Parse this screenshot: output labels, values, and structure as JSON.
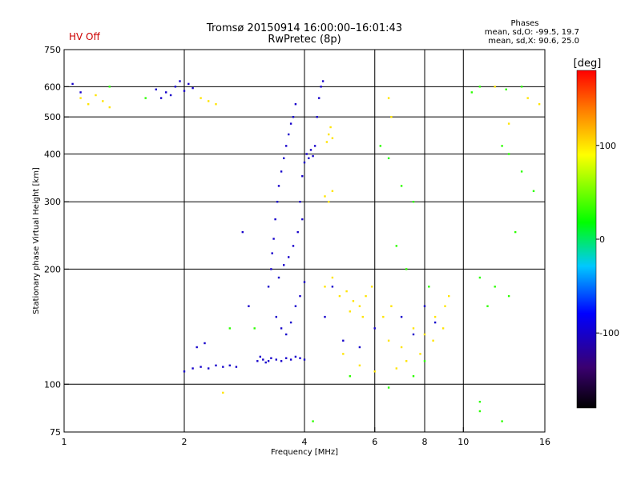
{
  "chart_data": {
    "type": "scatter",
    "title": "Tromsø 20150914 16:00:00–16:01:43",
    "subtitle": "RwPretec (8p)",
    "status_label": "HV Off",
    "xlabel": "Frequency [MHz]",
    "ylabel": "Stationary phase Virtual Height [km]",
    "x_scale": "log",
    "y_scale": "log",
    "xlim": [
      1,
      16
    ],
    "ylim": [
      75,
      750
    ],
    "x_ticks": [
      1,
      2,
      4,
      6,
      8,
      10,
      16
    ],
    "x_tick_labels": [
      "1",
      "2",
      "4",
      "6",
      "8",
      "10",
      "16"
    ],
    "y_ticks": [
      75,
      100,
      200,
      300,
      400,
      500,
      600,
      750
    ],
    "y_tick_labels": [
      "75",
      "100",
      "200",
      "300",
      "400",
      "500",
      "600",
      "750"
    ],
    "grid": true,
    "legend": {
      "title": "Phases",
      "lines": [
        "mean, sd,O:  -99.5, 19.7",
        "mean, sd,X:  90.6, 25.0"
      ]
    },
    "colorbar": {
      "label": "[deg]",
      "range": [
        -180,
        180
      ],
      "ticks": [
        100,
        0,
        -100
      ],
      "tick_labels": [
        "100",
        "0",
        "-100"
      ]
    },
    "series": [
      {
        "mode": "O",
        "points": [
          [
            3.05,
            115
          ],
          [
            3.1,
            118
          ],
          [
            3.15,
            116
          ],
          [
            3.2,
            114
          ],
          [
            3.25,
            115
          ],
          [
            3.3,
            117
          ],
          [
            3.4,
            116
          ],
          [
            3.5,
            115
          ],
          [
            3.6,
            117
          ],
          [
            3.7,
            116
          ],
          [
            3.8,
            118
          ],
          [
            3.9,
            117
          ],
          [
            4.0,
            116
          ],
          [
            3.25,
            180
          ],
          [
            3.3,
            200
          ],
          [
            3.32,
            220
          ],
          [
            3.35,
            240
          ],
          [
            3.38,
            270
          ],
          [
            3.42,
            300
          ],
          [
            3.45,
            330
          ],
          [
            3.5,
            360
          ],
          [
            3.55,
            390
          ],
          [
            3.6,
            420
          ],
          [
            3.65,
            450
          ],
          [
            3.7,
            480
          ],
          [
            3.75,
            500
          ],
          [
            3.8,
            540
          ],
          [
            3.4,
            150
          ],
          [
            3.5,
            140
          ],
          [
            3.6,
            135
          ],
          [
            3.7,
            145
          ],
          [
            3.8,
            160
          ],
          [
            3.9,
            170
          ],
          [
            4.0,
            185
          ],
          [
            3.45,
            190
          ],
          [
            3.55,
            205
          ],
          [
            3.65,
            215
          ],
          [
            3.75,
            230
          ],
          [
            3.85,
            250
          ],
          [
            3.95,
            270
          ],
          [
            3.9,
            300
          ],
          [
            3.95,
            350
          ],
          [
            4.0,
            380
          ],
          [
            4.05,
            400
          ],
          [
            4.1,
            390
          ],
          [
            4.15,
            410
          ],
          [
            4.2,
            395
          ],
          [
            4.25,
            420
          ],
          [
            4.3,
            500
          ],
          [
            4.35,
            560
          ],
          [
            4.4,
            600
          ],
          [
            4.45,
            620
          ],
          [
            2.0,
            108
          ],
          [
            2.1,
            110
          ],
          [
            2.2,
            111
          ],
          [
            2.3,
            110
          ],
          [
            2.4,
            112
          ],
          [
            2.5,
            111
          ],
          [
            2.6,
            112
          ],
          [
            2.7,
            111
          ],
          [
            2.15,
            125
          ],
          [
            2.25,
            128
          ],
          [
            1.7,
            590
          ],
          [
            1.8,
            580
          ],
          [
            1.9,
            600
          ],
          [
            2.0,
            585
          ],
          [
            2.1,
            595
          ],
          [
            1.75,
            560
          ],
          [
            1.85,
            570
          ],
          [
            1.95,
            620
          ],
          [
            2.05,
            610
          ],
          [
            1.05,
            610
          ],
          [
            1.1,
            580
          ],
          [
            2.8,
            250
          ],
          [
            2.9,
            160
          ],
          [
            4.5,
            150
          ],
          [
            4.7,
            180
          ],
          [
            5.0,
            130
          ],
          [
            5.5,
            125
          ],
          [
            6.0,
            140
          ],
          [
            7.0,
            150
          ],
          [
            7.5,
            135
          ],
          [
            8.0,
            160
          ],
          [
            8.5,
            145
          ]
        ],
        "phase_deg": -100
      },
      {
        "mode": "X",
        "points": [
          [
            4.6,
            450
          ],
          [
            4.65,
            470
          ],
          [
            4.7,
            440
          ],
          [
            4.55,
            430
          ],
          [
            4.5,
            310
          ],
          [
            4.6,
            300
          ],
          [
            4.7,
            320
          ],
          [
            4.5,
            180
          ],
          [
            4.7,
            190
          ],
          [
            4.9,
            170
          ],
          [
            5.1,
            175
          ],
          [
            5.3,
            165
          ],
          [
            5.5,
            160
          ],
          [
            5.7,
            170
          ],
          [
            5.9,
            180
          ],
          [
            5.2,
            155
          ],
          [
            5.6,
            150
          ],
          [
            6.5,
            130
          ],
          [
            7.0,
            125
          ],
          [
            7.5,
            140
          ],
          [
            8.0,
            135
          ],
          [
            8.5,
            150
          ],
          [
            9.0,
            160
          ],
          [
            6.8,
            110
          ],
          [
            7.2,
            115
          ],
          [
            7.8,
            120
          ],
          [
            8.4,
            130
          ],
          [
            8.9,
            140
          ],
          [
            9.2,
            170
          ],
          [
            1.1,
            560
          ],
          [
            1.15,
            540
          ],
          [
            1.2,
            570
          ],
          [
            1.25,
            550
          ],
          [
            1.3,
            530
          ],
          [
            2.2,
            560
          ],
          [
            2.3,
            550
          ],
          [
            2.4,
            540
          ],
          [
            5.0,
            120
          ],
          [
            5.5,
            112
          ],
          [
            6.0,
            108
          ],
          [
            6.3,
            150
          ],
          [
            6.6,
            160
          ],
          [
            6.5,
            560
          ],
          [
            6.6,
            500
          ],
          [
            12.0,
            600
          ],
          [
            14.5,
            560
          ],
          [
            15.5,
            540
          ],
          [
            13.0,
            480
          ],
          [
            2.5,
            95
          ]
        ],
        "phase_deg": 100
      },
      {
        "mode": "noise",
        "points": [
          [
            12.5,
            420
          ],
          [
            13.0,
            400
          ],
          [
            14.0,
            360
          ],
          [
            15.0,
            320
          ],
          [
            13.5,
            250
          ],
          [
            11.0,
            190
          ],
          [
            11.5,
            160
          ],
          [
            12.0,
            180
          ],
          [
            13.0,
            170
          ],
          [
            6.2,
            420
          ],
          [
            6.5,
            390
          ],
          [
            7.0,
            330
          ],
          [
            7.5,
            300
          ],
          [
            7.2,
            200
          ],
          [
            6.8,
            230
          ],
          [
            8.2,
            180
          ],
          [
            10.5,
            580
          ],
          [
            11.0,
            600
          ],
          [
            12.8,
            590
          ],
          [
            14.0,
            600
          ],
          [
            11.0,
            90
          ],
          [
            11.0,
            85
          ],
          [
            12.5,
            80
          ],
          [
            6.5,
            98
          ],
          [
            7.5,
            105
          ],
          [
            8.0,
            115
          ],
          [
            2.6,
            140
          ],
          [
            3.0,
            140
          ],
          [
            1.3,
            600
          ],
          [
            1.6,
            560
          ],
          [
            4.2,
            80
          ],
          [
            5.2,
            105
          ]
        ],
        "phase_deg": 30
      }
    ]
  }
}
